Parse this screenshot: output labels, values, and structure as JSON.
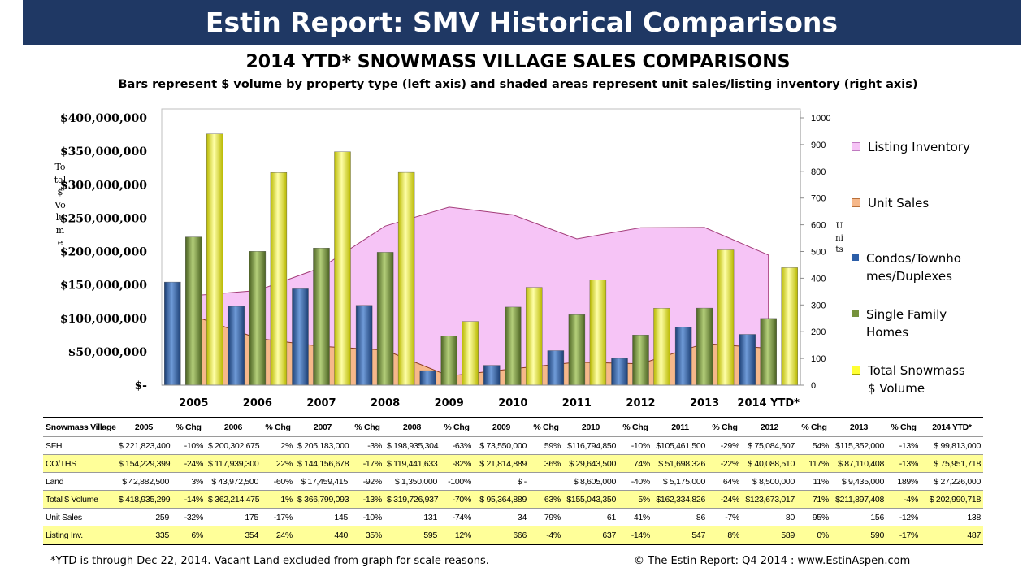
{
  "banner": "Estin Report: SMV Historical Comparisons",
  "title": "2014 YTD* SNOWMASS VILLAGE SALES COMPARISONS",
  "subtitle": "Bars represent $ volume by property type (left axis) and shaded areas represent unit sales/listing inventory (right axis)",
  "colors": {
    "banner": "#1f3864",
    "listing_inventory": "#f6c4f6",
    "unit_sales": "#f6b88a",
    "condos": "#2c5ea8",
    "sfh": "#76923c",
    "total": "#ffff33",
    "table_highlight": "#ffff99"
  },
  "chart_data": {
    "type": "bar",
    "title": "2014 YTD* SNOWMASS VILLAGE SALES COMPARISONS",
    "categories": [
      "2005",
      "2006",
      "2007",
      "2008",
      "2009",
      "2010",
      "2011",
      "2012",
      "2013",
      "2014 YTD*"
    ],
    "ylabel": "Total $ Volume",
    "y2label": "Units",
    "ylim": [
      0,
      400000000
    ],
    "y2lim": [
      0,
      1000
    ],
    "y_ticks": [
      "$400,000,000",
      "$350,000,000",
      "$300,000,000",
      "$250,000,000",
      "$200,000,000",
      "$150,000,000",
      "$100,000,000",
      "$50,000,000",
      "$-"
    ],
    "y2_ticks": [
      "1000",
      "900",
      "800",
      "700",
      "600",
      "500",
      "400",
      "300",
      "200",
      "100",
      "0"
    ],
    "series": [
      {
        "name": "Condos/Townhomes/Duplexes",
        "kind": "bar",
        "axis": "left",
        "values": [
          154229399,
          117939300,
          144156678,
          119441633,
          21814889,
          29643500,
          51698326,
          40088510,
          87110408,
          75951718
        ]
      },
      {
        "name": "Single Family Homes",
        "kind": "bar",
        "axis": "left",
        "values": [
          221823400,
          200302675,
          205183000,
          198935304,
          73550000,
          116794850,
          105461500,
          75084507,
          115352000,
          99813000
        ]
      },
      {
        "name": "Total Snowmass $ Volume",
        "kind": "bar",
        "axis": "left",
        "values": [
          376052799,
          318241975,
          349339678,
          318376937,
          95364889,
          146438350,
          157159826,
          115173017,
          202462408,
          175764718
        ]
      },
      {
        "name": "Unit Sales",
        "kind": "area",
        "axis": "right",
        "values": [
          259,
          175,
          145,
          131,
          34,
          61,
          86,
          80,
          156,
          138
        ]
      },
      {
        "name": "Listing Inventory",
        "kind": "area",
        "axis": "right",
        "values": [
          335,
          354,
          440,
          595,
          666,
          637,
          547,
          589,
          590,
          487
        ]
      }
    ],
    "legend_position": "right",
    "grid": false
  },
  "legend": [
    {
      "label": "Listing Inventory",
      "color": "#f6c4f6"
    },
    {
      "label": "Unit Sales",
      "color": "#f6b88a"
    },
    {
      "label": "Condos/Townho mes/Duplexes",
      "color": "#2c5ea8"
    },
    {
      "label": "Single Family Homes",
      "color": "#76923c"
    },
    {
      "label": "Total Snowmass $ Volume",
      "color": "#ffff33"
    }
  ],
  "axis_labels": {
    "left": "Total $ Volume",
    "right": "Units"
  },
  "table": {
    "header": [
      "Snowmass Village",
      "2005",
      "% Chg",
      "2006",
      "% Chg",
      "2007",
      "% Chg",
      "2008",
      "% Chg",
      "2009",
      "% Chg",
      "2010",
      "% Chg",
      "2011",
      "% Chg",
      "2012",
      "% Chg",
      "2013",
      "% Chg",
      "2014 YTD*"
    ],
    "rows": [
      {
        "yellow": false,
        "cells": [
          "SFH",
          "$ 221,823,400",
          "-10%",
          "$ 200,302,675",
          "2%",
          "$ 205,183,000",
          "-3%",
          "$ 198,935,304",
          "-63%",
          "$ 73,550,000",
          "59%",
          "$116,794,850",
          "-10%",
          "$105,461,500",
          "-29%",
          "$ 75,084,507",
          "54%",
          "$115,352,000",
          "-13%",
          "$ 99,813,000"
        ]
      },
      {
        "yellow": true,
        "cells": [
          "CO/THS",
          "$ 154,229,399",
          "-24%",
          "$ 117,939,300",
          "22%",
          "$ 144,156,678",
          "-17%",
          "$ 119,441,633",
          "-82%",
          "$ 21,814,889",
          "36%",
          "$ 29,643,500",
          "74%",
          "$ 51,698,326",
          "-22%",
          "$ 40,088,510",
          "117%",
          "$ 87,110,408",
          "-13%",
          "$ 75,951,718"
        ]
      },
      {
        "yellow": false,
        "cells": [
          "Land",
          "$ 42,882,500",
          "3%",
          "$ 43,972,500",
          "-60%",
          "$ 17,459,415",
          "-92%",
          "$ 1,350,000",
          "-100%",
          "$ -",
          "",
          "$ 8,605,000",
          "-40%",
          "$ 5,175,000",
          "64%",
          "$ 8,500,000",
          "11%",
          "$ 9,435,000",
          "189%",
          "$ 27,226,000"
        ]
      },
      {
        "yellow": true,
        "cells": [
          "Total $ Volume",
          "$ 418,935,299",
          "-14%",
          "$ 362,214,475",
          "1%",
          "$ 366,799,093",
          "-13%",
          "$ 319,726,937",
          "-70%",
          "$ 95,364,889",
          "63%",
          "$155,043,350",
          "5%",
          "$162,334,826",
          "-24%",
          "$123,673,017",
          "71%",
          "$211,897,408",
          "-4%",
          "$ 202,990,718"
        ]
      },
      {
        "yellow": false,
        "cells": [
          "Unit Sales",
          "259",
          "-32%",
          "175",
          "-17%",
          "145",
          "-10%",
          "131",
          "-74%",
          "34",
          "79%",
          "61",
          "41%",
          "86",
          "-7%",
          "80",
          "95%",
          "156",
          "-12%",
          "138"
        ]
      },
      {
        "yellow": true,
        "cells": [
          "Listing Inv.",
          "335",
          "6%",
          "354",
          "24%",
          "440",
          "35%",
          "595",
          "12%",
          "666",
          "-4%",
          "637",
          "-14%",
          "547",
          "8%",
          "589",
          "0%",
          "590",
          "-17%",
          "487"
        ]
      }
    ]
  },
  "footnote": "*YTD is through Dec 22, 2014. Vacant Land excluded from graph for scale reasons.",
  "copyright": "© The Estin Report: Q4 2014 : www.EstinAspen.com"
}
